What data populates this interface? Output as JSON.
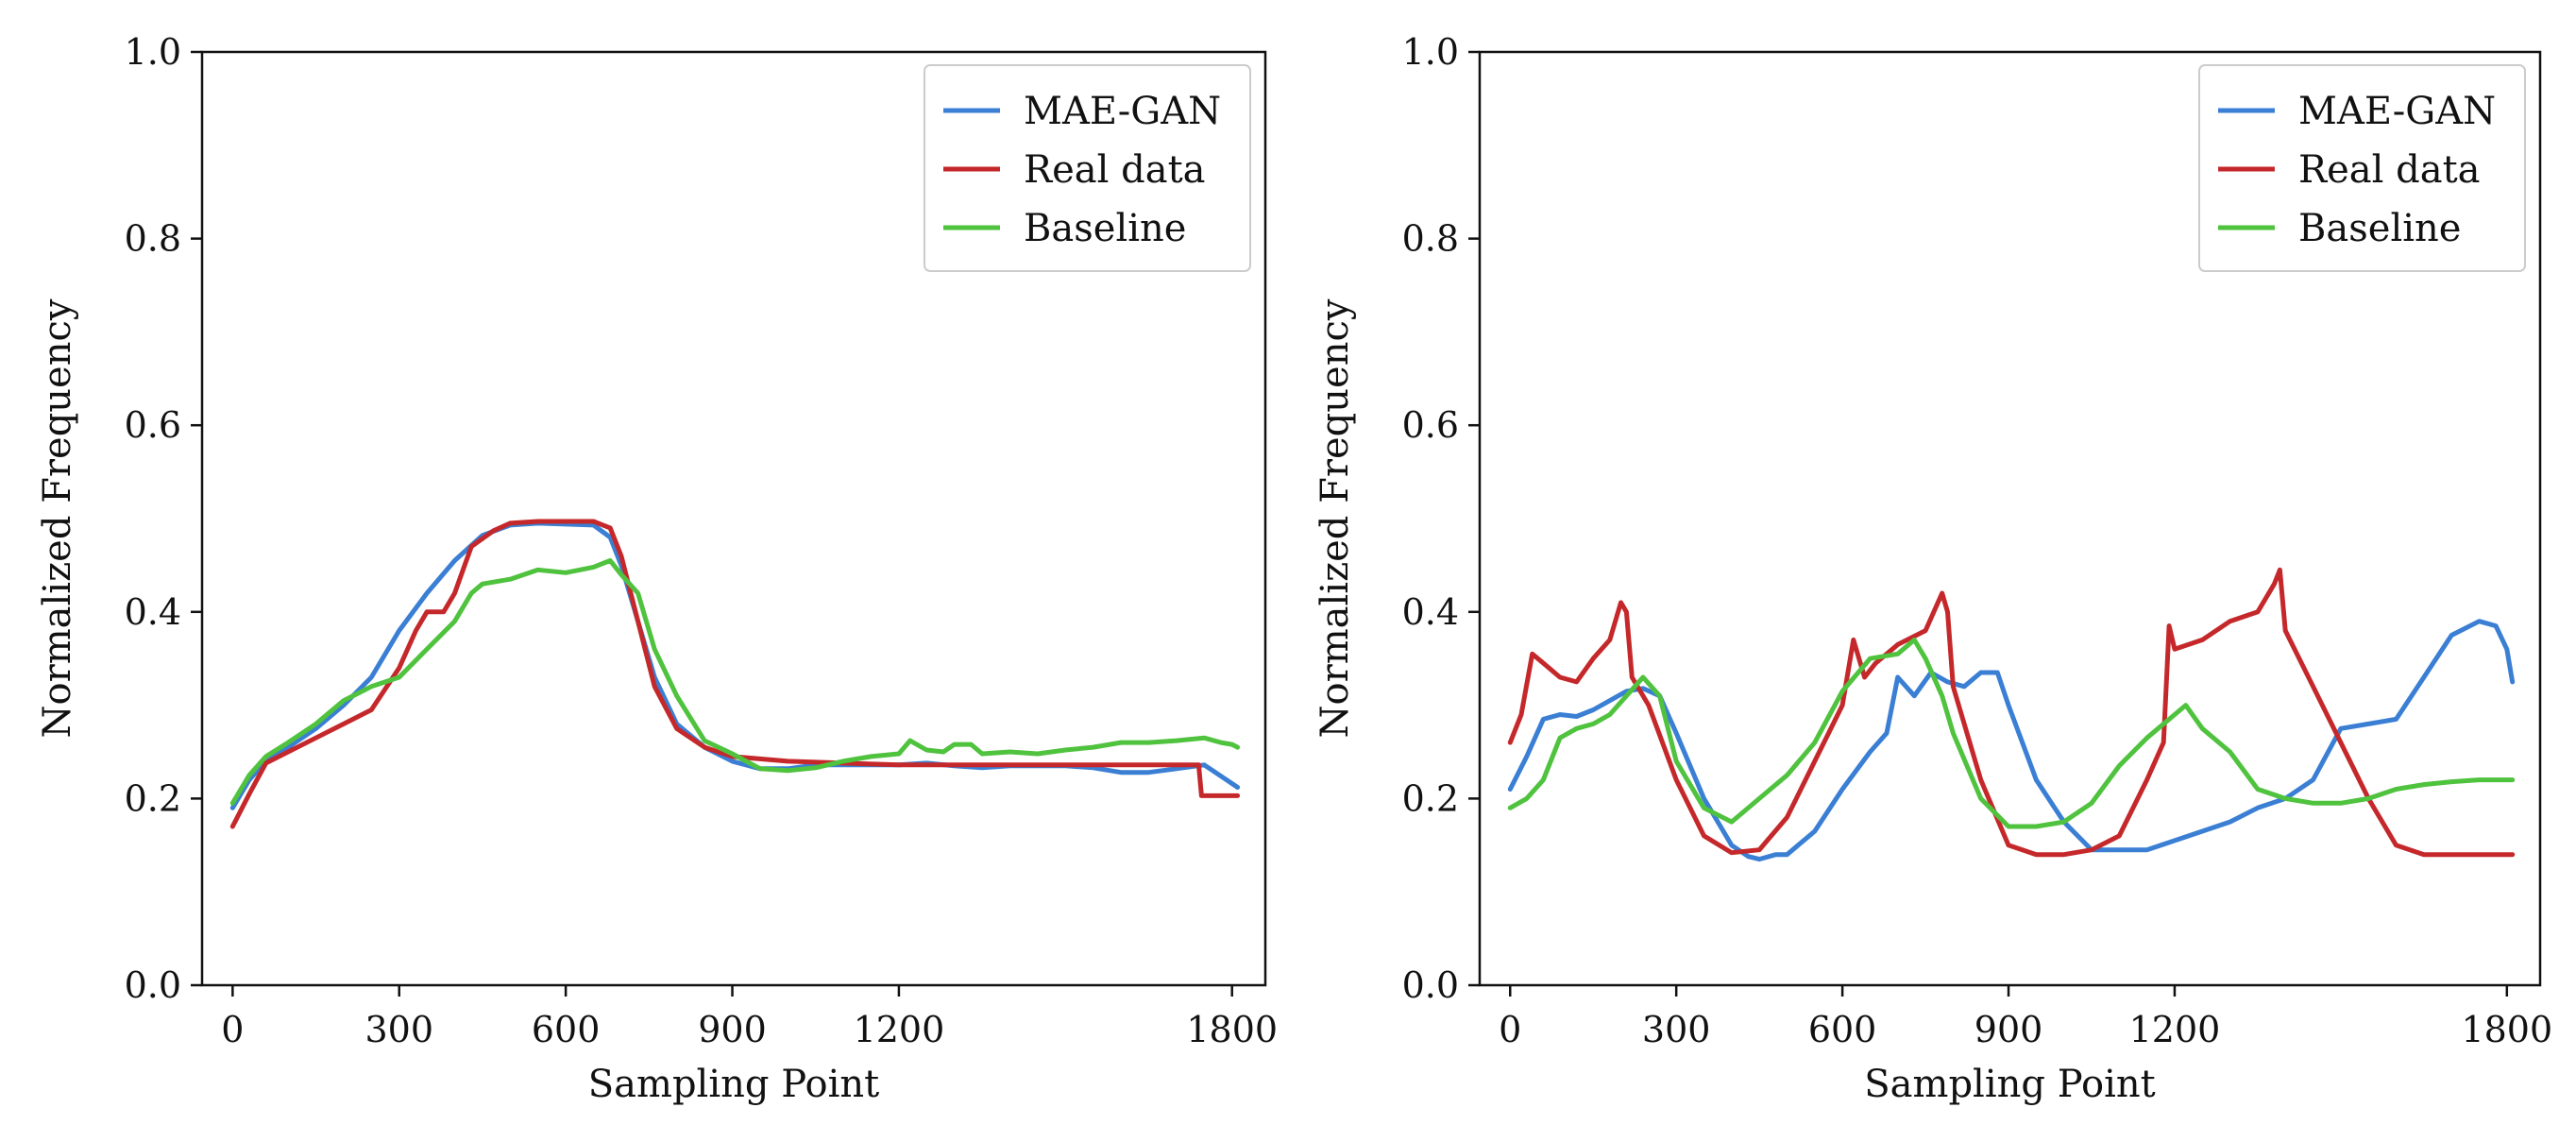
{
  "chart_data": [
    {
      "type": "line",
      "xlabel": "Sampling Point",
      "ylabel": "Normalized Frequency",
      "xlim": [
        -55,
        1860
      ],
      "ylim": [
        0.0,
        1.0
      ],
      "xticks": [
        0,
        300,
        600,
        900,
        1200,
        1800
      ],
      "xtick_labels": [
        "0",
        "300",
        "600",
        "900",
        "1200",
        "1800"
      ],
      "yticks": [
        0.0,
        0.2,
        0.4,
        0.6,
        0.8,
        1.0
      ],
      "ytick_labels": [
        "0.0",
        "0.2",
        "0.4",
        "0.6",
        "0.8",
        "1.0"
      ],
      "legend_position": "top-right",
      "series": [
        {
          "name": "MAE-GAN",
          "color": "#3a7fd4",
          "x": [
            0,
            30,
            60,
            100,
            150,
            200,
            250,
            300,
            350,
            400,
            450,
            500,
            550,
            600,
            650,
            680,
            700,
            730,
            760,
            800,
            850,
            900,
            950,
            1000,
            1050,
            1100,
            1150,
            1200,
            1250,
            1300,
            1350,
            1400,
            1450,
            1500,
            1550,
            1600,
            1650,
            1700,
            1750,
            1790,
            1810
          ],
          "y": [
            0.19,
            0.22,
            0.24,
            0.255,
            0.275,
            0.3,
            0.33,
            0.38,
            0.42,
            0.455,
            0.482,
            0.493,
            0.495,
            0.494,
            0.493,
            0.48,
            0.45,
            0.39,
            0.33,
            0.28,
            0.255,
            0.24,
            0.232,
            0.232,
            0.236,
            0.236,
            0.236,
            0.236,
            0.238,
            0.235,
            0.233,
            0.235,
            0.235,
            0.235,
            0.233,
            0.228,
            0.228,
            0.232,
            0.236,
            0.22,
            0.212
          ]
        },
        {
          "name": "Real data",
          "color": "#c5282a",
          "x": [
            0,
            30,
            60,
            100,
            150,
            200,
            250,
            300,
            330,
            350,
            380,
            400,
            430,
            470,
            500,
            550,
            600,
            650,
            680,
            700,
            730,
            760,
            800,
            850,
            900,
            1000,
            1100,
            1200,
            1300,
            1400,
            1500,
            1600,
            1700,
            1740,
            1745,
            1810
          ],
          "y": [
            0.17,
            0.205,
            0.238,
            0.25,
            0.265,
            0.28,
            0.295,
            0.34,
            0.38,
            0.4,
            0.4,
            0.42,
            0.47,
            0.487,
            0.495,
            0.497,
            0.497,
            0.497,
            0.49,
            0.46,
            0.39,
            0.32,
            0.275,
            0.255,
            0.245,
            0.24,
            0.238,
            0.236,
            0.236,
            0.236,
            0.236,
            0.236,
            0.236,
            0.236,
            0.203,
            0.203
          ]
        },
        {
          "name": "Baseline",
          "color": "#4fc23e",
          "x": [
            0,
            30,
            60,
            100,
            150,
            200,
            250,
            300,
            350,
            400,
            430,
            450,
            500,
            550,
            600,
            650,
            680,
            700,
            730,
            760,
            800,
            850,
            900,
            950,
            1000,
            1050,
            1100,
            1150,
            1200,
            1220,
            1250,
            1280,
            1300,
            1330,
            1350,
            1400,
            1450,
            1500,
            1550,
            1600,
            1650,
            1700,
            1750,
            1780,
            1800,
            1810
          ],
          "y": [
            0.195,
            0.225,
            0.245,
            0.26,
            0.28,
            0.305,
            0.32,
            0.33,
            0.36,
            0.39,
            0.42,
            0.43,
            0.435,
            0.445,
            0.442,
            0.448,
            0.455,
            0.44,
            0.42,
            0.36,
            0.31,
            0.262,
            0.248,
            0.232,
            0.23,
            0.233,
            0.24,
            0.245,
            0.248,
            0.262,
            0.252,
            0.25,
            0.258,
            0.258,
            0.248,
            0.25,
            0.248,
            0.252,
            0.255,
            0.26,
            0.26,
            0.262,
            0.265,
            0.26,
            0.258,
            0.255
          ]
        }
      ]
    },
    {
      "type": "line",
      "xlabel": "Sampling Point",
      "ylabel": "Normalized Frequency",
      "xlim": [
        -55,
        1860
      ],
      "ylim": [
        0.0,
        1.0
      ],
      "xticks": [
        0,
        300,
        600,
        900,
        1200,
        1800
      ],
      "xtick_labels": [
        "0",
        "300",
        "600",
        "900",
        "1200",
        "1800"
      ],
      "yticks": [
        0.0,
        0.2,
        0.4,
        0.6,
        0.8,
        1.0
      ],
      "ytick_labels": [
        "0.0",
        "0.2",
        "0.4",
        "0.6",
        "0.8",
        "1.0"
      ],
      "legend_position": "top-right",
      "series": [
        {
          "name": "MAE-GAN",
          "color": "#3a7fd4",
          "x": [
            0,
            30,
            60,
            90,
            120,
            150,
            180,
            210,
            240,
            270,
            300,
            350,
            400,
            430,
            450,
            480,
            500,
            550,
            600,
            650,
            680,
            700,
            730,
            760,
            790,
            820,
            850,
            880,
            900,
            950,
            1000,
            1050,
            1100,
            1150,
            1200,
            1250,
            1300,
            1350,
            1400,
            1450,
            1500,
            1550,
            1600,
            1650,
            1700,
            1750,
            1780,
            1800,
            1810
          ],
          "y": [
            0.21,
            0.245,
            0.285,
            0.29,
            0.288,
            0.295,
            0.305,
            0.315,
            0.318,
            0.31,
            0.27,
            0.2,
            0.15,
            0.138,
            0.135,
            0.14,
            0.14,
            0.165,
            0.21,
            0.25,
            0.27,
            0.33,
            0.31,
            0.335,
            0.325,
            0.32,
            0.335,
            0.335,
            0.3,
            0.22,
            0.175,
            0.145,
            0.145,
            0.145,
            0.155,
            0.165,
            0.175,
            0.19,
            0.2,
            0.22,
            0.275,
            0.28,
            0.285,
            0.33,
            0.375,
            0.39,
            0.385,
            0.36,
            0.325
          ]
        },
        {
          "name": "Real data",
          "color": "#c5282a",
          "x": [
            0,
            20,
            40,
            60,
            90,
            120,
            150,
            180,
            200,
            210,
            220,
            250,
            300,
            350,
            400,
            450,
            500,
            550,
            600,
            620,
            640,
            660,
            700,
            750,
            780,
            790,
            800,
            850,
            900,
            950,
            1000,
            1050,
            1100,
            1150,
            1180,
            1190,
            1200,
            1250,
            1300,
            1350,
            1380,
            1390,
            1400,
            1450,
            1500,
            1550,
            1600,
            1650,
            1700,
            1750,
            1800,
            1810
          ],
          "y": [
            0.26,
            0.29,
            0.355,
            0.345,
            0.33,
            0.325,
            0.35,
            0.37,
            0.41,
            0.4,
            0.33,
            0.3,
            0.22,
            0.16,
            0.142,
            0.145,
            0.18,
            0.24,
            0.3,
            0.37,
            0.33,
            0.345,
            0.365,
            0.38,
            0.42,
            0.4,
            0.32,
            0.22,
            0.15,
            0.14,
            0.14,
            0.145,
            0.16,
            0.22,
            0.26,
            0.385,
            0.36,
            0.37,
            0.39,
            0.4,
            0.43,
            0.445,
            0.38,
            0.32,
            0.26,
            0.2,
            0.15,
            0.14,
            0.14,
            0.14,
            0.14,
            0.14
          ]
        },
        {
          "name": "Baseline",
          "color": "#4fc23e",
          "x": [
            0,
            30,
            60,
            90,
            120,
            150,
            180,
            210,
            240,
            270,
            300,
            350,
            400,
            450,
            500,
            550,
            600,
            650,
            700,
            730,
            750,
            780,
            800,
            850,
            900,
            950,
            1000,
            1050,
            1100,
            1150,
            1200,
            1220,
            1250,
            1300,
            1350,
            1400,
            1450,
            1500,
            1550,
            1600,
            1650,
            1700,
            1750,
            1800,
            1810
          ],
          "y": [
            0.19,
            0.2,
            0.22,
            0.265,
            0.275,
            0.28,
            0.29,
            0.31,
            0.33,
            0.31,
            0.24,
            0.19,
            0.175,
            0.2,
            0.225,
            0.26,
            0.315,
            0.35,
            0.355,
            0.37,
            0.35,
            0.31,
            0.27,
            0.2,
            0.17,
            0.17,
            0.175,
            0.195,
            0.235,
            0.265,
            0.29,
            0.3,
            0.275,
            0.25,
            0.21,
            0.2,
            0.195,
            0.195,
            0.2,
            0.21,
            0.215,
            0.218,
            0.22,
            0.22,
            0.22
          ]
        }
      ]
    }
  ]
}
